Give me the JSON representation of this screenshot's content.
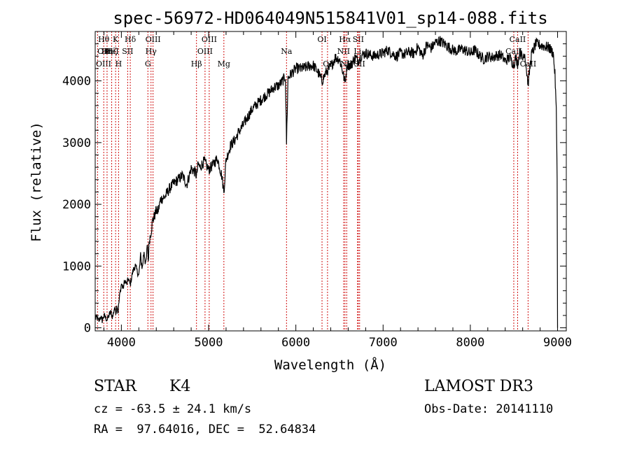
{
  "chart_data": {
    "type": "line",
    "title": "spec-56972-HD064049N515841V01_sp14-088.fits",
    "xlabel": "Wavelength (Å)",
    "ylabel": "Flux (relative)",
    "xlim": [
      3700,
      9100
    ],
    "ylim": [
      -50,
      4800
    ],
    "xticks": [
      4000,
      5000,
      6000,
      7000,
      8000,
      9000
    ],
    "yticks": [
      0,
      1000,
      2000,
      3000,
      4000
    ],
    "series": [
      {
        "name": "flux",
        "x": [
          3700,
          3720,
          3740,
          3760,
          3780,
          3800,
          3820,
          3840,
          3860,
          3880,
          3900,
          3920,
          3940,
          3950,
          3960,
          3968,
          3980,
          4000,
          4020,
          4040,
          4060,
          4080,
          4101,
          4120,
          4140,
          4160,
          4180,
          4200,
          4220,
          4240,
          4260,
          4280,
          4300,
          4308,
          4320,
          4340,
          4360,
          4380,
          4400,
          4420,
          4450,
          4500,
          4550,
          4600,
          4650,
          4700,
          4750,
          4800,
          4850,
          4861,
          4880,
          4900,
          4950,
          5000,
          5050,
          5100,
          5150,
          5175,
          5200,
          5250,
          5300,
          5350,
          5400,
          5450,
          5500,
          5550,
          5600,
          5650,
          5700,
          5750,
          5800,
          5850,
          5880,
          5893,
          5910,
          5950,
          6000,
          6050,
          6100,
          6150,
          6200,
          6250,
          6300,
          6350,
          6400,
          6450,
          6500,
          6530,
          6563,
          6590,
          6620,
          6650,
          6680,
          6710,
          6750,
          6800,
          6850,
          6900,
          6950,
          7000,
          7050,
          7100,
          7150,
          7200,
          7250,
          7300,
          7350,
          7400,
          7450,
          7500,
          7550,
          7600,
          7650,
          7700,
          7750,
          7800,
          7850,
          7900,
          7950,
          8000,
          8050,
          8100,
          8150,
          8200,
          8250,
          8300,
          8350,
          8400,
          8450,
          8498,
          8520,
          8542,
          8570,
          8600,
          8620,
          8662,
          8700,
          8750,
          8800,
          8850,
          8900,
          8950,
          8970,
          8985,
          8995,
          9000
        ],
        "y": [
          150,
          170,
          100,
          180,
          120,
          200,
          160,
          130,
          210,
          250,
          170,
          320,
          260,
          380,
          240,
          350,
          520,
          710,
          640,
          770,
          700,
          800,
          690,
          840,
          950,
          1000,
          920,
          850,
          1150,
          970,
          1250,
          1000,
          1360,
          1080,
          1420,
          1560,
          1750,
          1810,
          1900,
          1880,
          2080,
          2120,
          2250,
          2340,
          2400,
          2470,
          2320,
          2580,
          2520,
          2450,
          2650,
          2600,
          2700,
          2560,
          2640,
          2750,
          2470,
          2200,
          2720,
          2950,
          3040,
          3180,
          3290,
          3420,
          3540,
          3620,
          3690,
          3760,
          3820,
          3900,
          3920,
          4000,
          4080,
          3000,
          4050,
          4120,
          4200,
          4200,
          4210,
          4240,
          4250,
          4150,
          4000,
          4150,
          4220,
          4380,
          4350,
          4200,
          3970,
          4280,
          4240,
          4300,
          4380,
          4330,
          4410,
          4450,
          4420,
          4400,
          4430,
          4450,
          4500,
          4450,
          4400,
          4450,
          4430,
          4470,
          4440,
          4550,
          4400,
          4580,
          4530,
          4620,
          4650,
          4600,
          4550,
          4500,
          4480,
          4520,
          4490,
          4450,
          4500,
          4420,
          4350,
          4400,
          4380,
          4410,
          4420,
          4320,
          4380,
          4260,
          4380,
          4280,
          4480,
          4350,
          4480,
          3950,
          4420,
          4600,
          4580,
          4560,
          4540,
          4450,
          4100,
          3500,
          2500,
          0
        ]
      }
    ],
    "lines": [
      {
        "label": "Hθ",
        "wl": 3798,
        "row": 0
      },
      {
        "label": "OII",
        "wl": 3727,
        "row": 1
      },
      {
        "label": "OIII",
        "wl": 3727,
        "row": 2
      },
      {
        "label": "Hη",
        "wl": 3836,
        "row": 1
      },
      {
        "label": "Hζ",
        "wl": 3889,
        "row": 1
      },
      {
        "label": "K",
        "wl": 3934,
        "row": 0
      },
      {
        "label": "HeI",
        "wl": 3889,
        "row": 1
      },
      {
        "label": "H",
        "wl": 3968,
        "row": 2
      },
      {
        "label": "SII",
        "wl": 4072,
        "row": 1
      },
      {
        "label": "Hδ",
        "wl": 4102,
        "row": 0
      },
      {
        "label": "G",
        "wl": 4304,
        "row": 2
      },
      {
        "label": "Hγ",
        "wl": 4340,
        "row": 1
      },
      {
        "label": "OIII",
        "wl": 4363,
        "row": 0
      },
      {
        "label": "Hβ",
        "wl": 4861,
        "row": 2
      },
      {
        "label": "OIII",
        "wl": 4959,
        "row": 1
      },
      {
        "label": "OIII",
        "wl": 5007,
        "row": 0
      },
      {
        "label": "Mg",
        "wl": 5175,
        "row": 2
      },
      {
        "label": "Na",
        "wl": 5893,
        "row": 1
      },
      {
        "label": "OI",
        "wl": 6300,
        "row": 0
      },
      {
        "label": "OI",
        "wl": 6363,
        "row": 2
      },
      {
        "label": "NII",
        "wl": 6548,
        "row": 1
      },
      {
        "label": "Hα",
        "wl": 6563,
        "row": 0
      },
      {
        "label": "NII",
        "wl": 6583,
        "row": 2
      },
      {
        "label": "Li",
        "wl": 6707,
        "row": 1
      },
      {
        "label": "SII",
        "wl": 6716,
        "row": 0
      },
      {
        "label": "SII",
        "wl": 6731,
        "row": 2
      },
      {
        "label": "CaII",
        "wl": 8498,
        "row": 1
      },
      {
        "label": "CaII",
        "wl": 8542,
        "row": 0
      },
      {
        "label": "CaII",
        "wl": 8662,
        "row": 2
      }
    ]
  },
  "info": {
    "class_label": "STAR",
    "subclass": "K4",
    "survey": "LAMOST DR3",
    "redshift": "cz = -63.5 ± 24.1 km/s",
    "obs_date": "Obs-Date: 20141110",
    "coords": "RA =  97.64016, DEC =  52.64834"
  }
}
